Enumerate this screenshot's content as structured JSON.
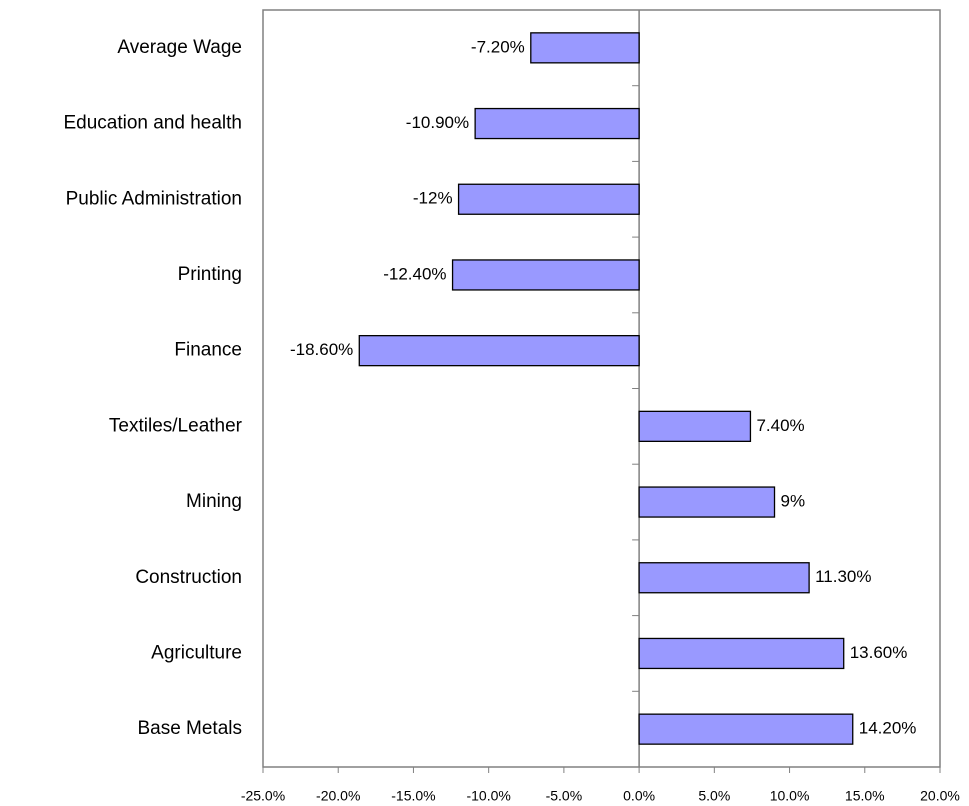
{
  "chart_data": {
    "type": "bar",
    "orientation": "horizontal",
    "categories": [
      "Average Wage",
      "Education and health",
      "Public Administration",
      "Printing",
      "Finance",
      "Textiles/Leather",
      "Mining",
      "Construction",
      "Agriculture",
      "Base Metals"
    ],
    "values": [
      -7.2,
      -10.9,
      -12,
      -12.4,
      -18.6,
      7.4,
      9,
      11.3,
      13.6,
      14.2
    ],
    "value_labels": [
      "-7.20%",
      "-10.90%",
      "-12%",
      "-12.40%",
      "-18.60%",
      "7.40%",
      "9%",
      "11.30%",
      "13.60%",
      "14.20%"
    ],
    "color": "#9999ff",
    "xlim": [
      -25,
      20
    ],
    "xticks": [
      {
        "value": -25,
        "label": "-25.0%"
      },
      {
        "value": -20,
        "label": "-20.0%"
      },
      {
        "value": -15,
        "label": "-15.0%"
      },
      {
        "value": -10,
        "label": "-10.0%"
      },
      {
        "value": -5,
        "label": "-5.0%"
      },
      {
        "value": 0,
        "label": "0.0%"
      },
      {
        "value": 5,
        "label": "5.0%"
      },
      {
        "value": 10,
        "label": "10.0%"
      },
      {
        "value": 15,
        "label": "15.0%"
      },
      {
        "value": 20,
        "label": "20.0%"
      }
    ],
    "grid": false
  }
}
